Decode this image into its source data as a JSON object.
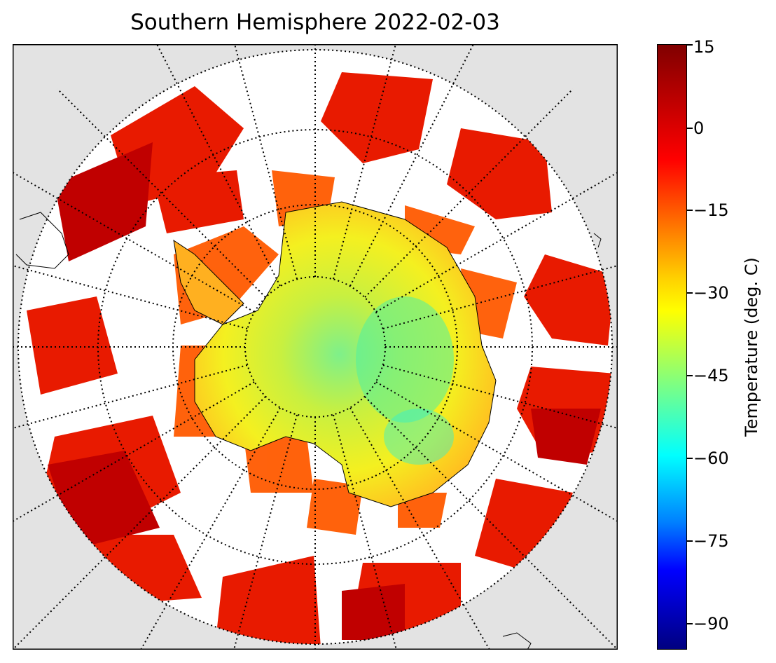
{
  "title": "Southern Hemisphere 2022-02-03",
  "map": {
    "projection": "south polar stereographic",
    "background_color": "#e3e3e3",
    "graticule": "dotted black meridians and parallels",
    "parallels_shown": 5,
    "meridians_shown": 24
  },
  "colorbar": {
    "label": "Temperature (deg. C)",
    "min": -95,
    "max": 15,
    "colormap": "jet",
    "ticks": [
      "15",
      "0",
      "−15",
      "−30",
      "−45",
      "−60",
      "−75",
      "−90"
    ]
  }
}
